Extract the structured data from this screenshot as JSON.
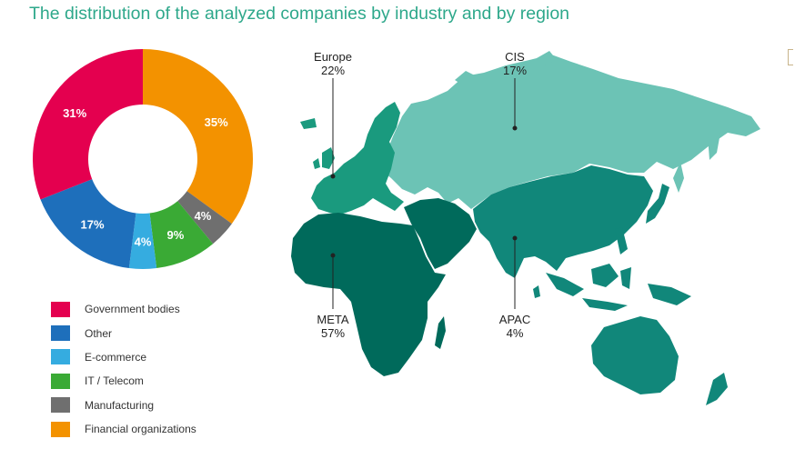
{
  "title": "The distribution of the analyzed companies by industry and by region",
  "colors": {
    "government": "#e4004f",
    "other": "#1e6fbb",
    "ecommerce": "#35ace0",
    "it_telecom": "#3aaa35",
    "manufacturing": "#6f6f6f",
    "financial": "#f39200",
    "cis": "#6cc3b5",
    "europe": "#1a9a7e",
    "apac": "#11877a",
    "meta": "#006a5b"
  },
  "chart_data": [
    {
      "type": "pie",
      "hole": true,
      "categories": [
        "Financial organizations",
        "Manufacturing",
        "IT / Telecom",
        "E-commerce",
        "Other",
        "Government bodies"
      ],
      "values": [
        35,
        4,
        9,
        4,
        17,
        31
      ],
      "labels": [
        "35%",
        "4%",
        "9%",
        "4%",
        "17%",
        "31%"
      ],
      "legend": [
        "Government bodies",
        "Other",
        "E-commerce",
        "IT / Telecom",
        "Manufacturing",
        "Financial organizations"
      ]
    },
    {
      "type": "map",
      "regions": [
        {
          "name": "Europe",
          "value": 22,
          "label": "22%"
        },
        {
          "name": "CIS",
          "value": 17,
          "label": "17%"
        },
        {
          "name": "META",
          "value": 57,
          "label": "57%"
        },
        {
          "name": "APAC",
          "value": 4,
          "label": "4%"
        }
      ]
    }
  ]
}
